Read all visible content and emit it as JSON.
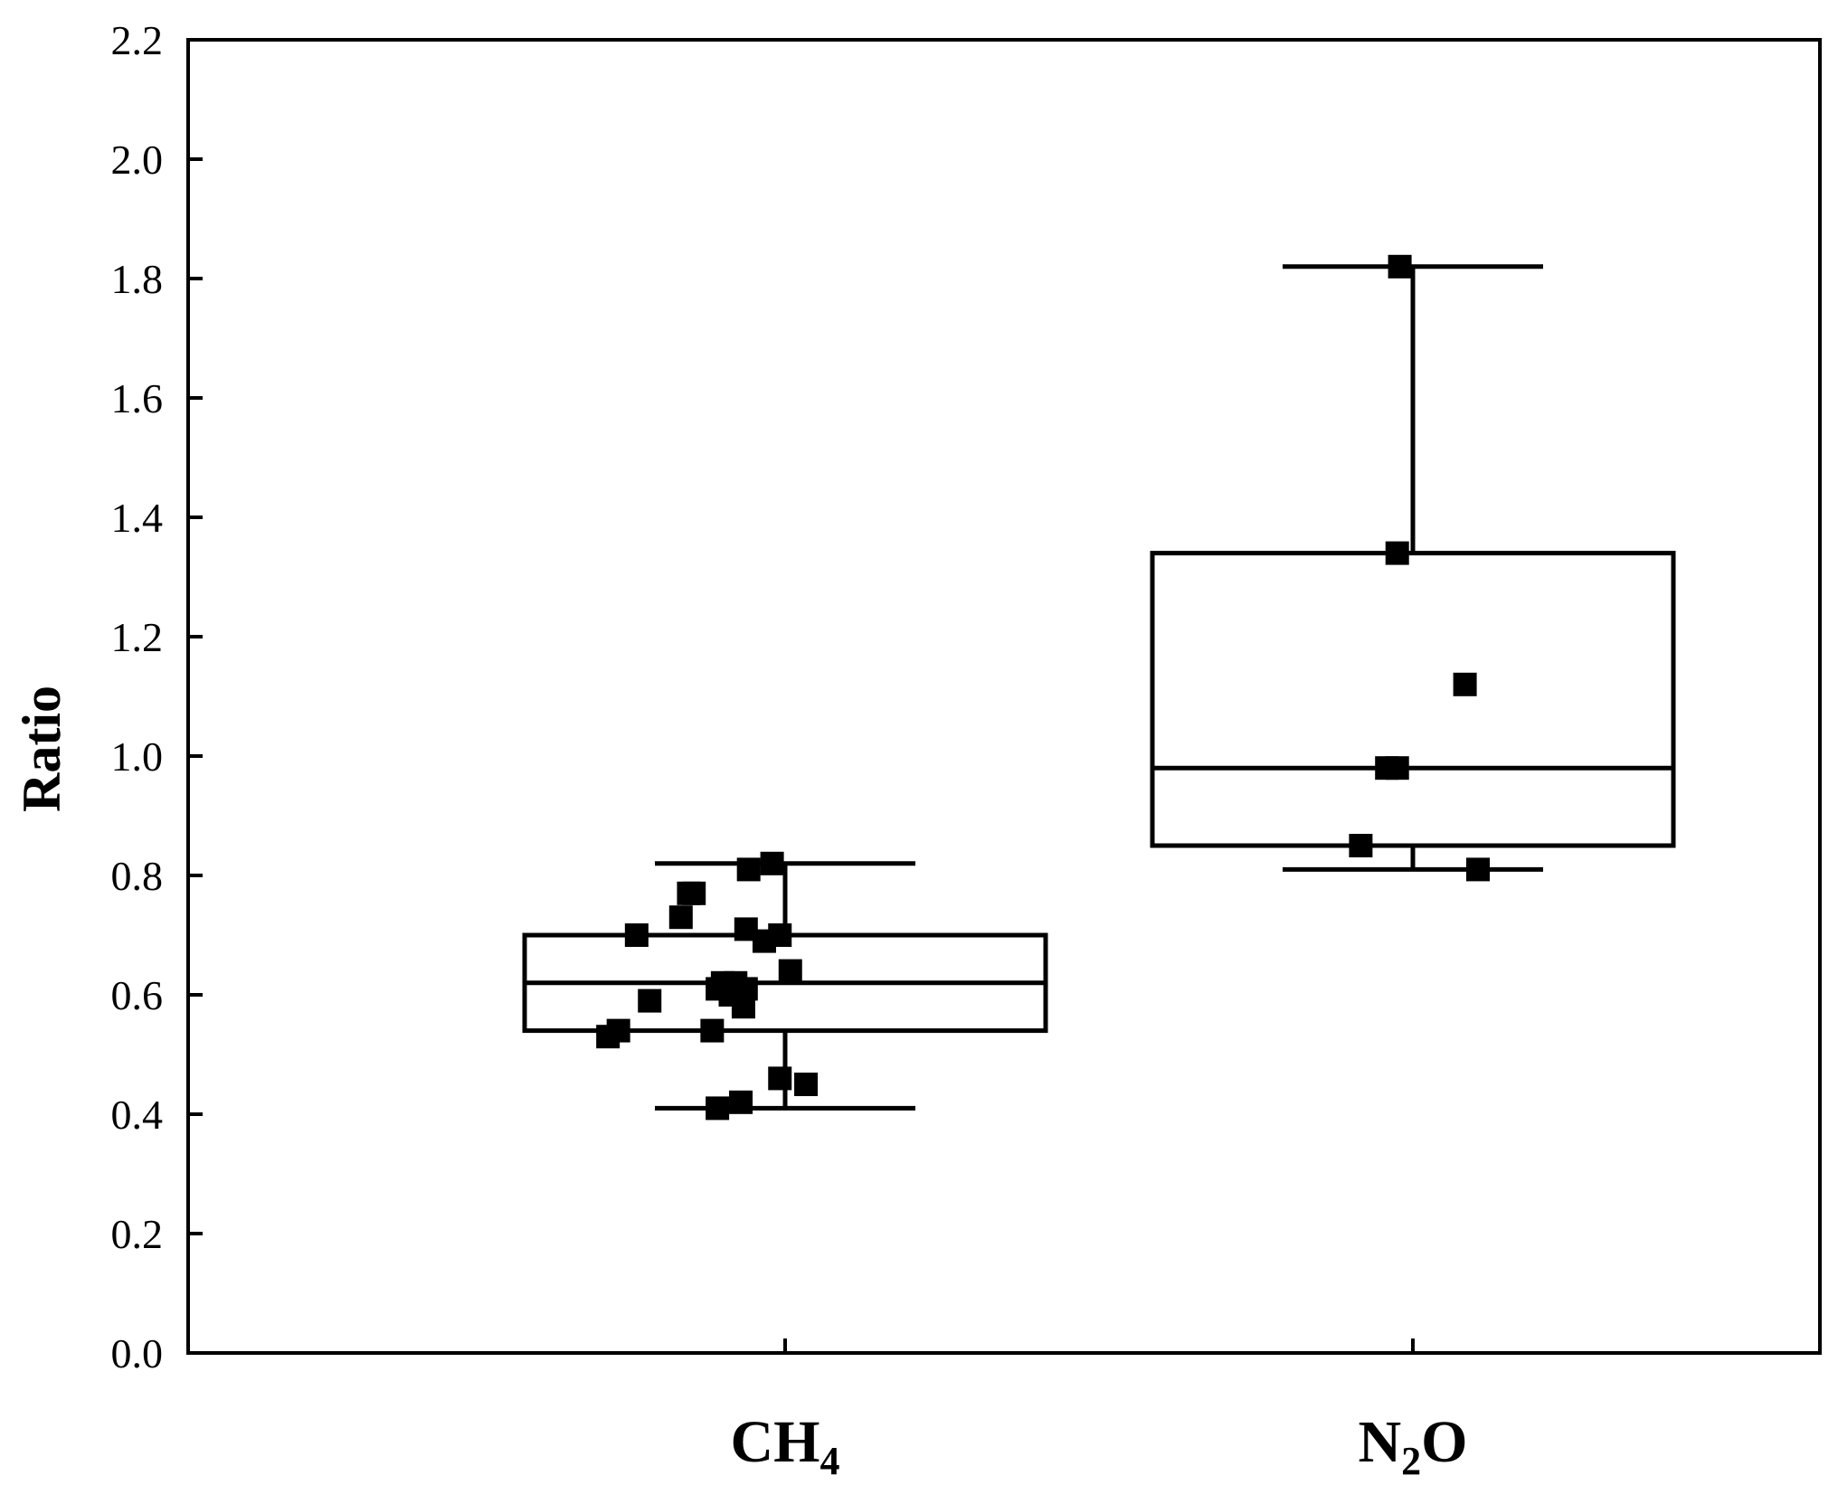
{
  "chart_data": {
    "type": "box",
    "title": "",
    "xlabel": "",
    "ylabel": "Ratio",
    "ylim": [
      0,
      2.2
    ],
    "yticks": [
      "0.0",
      "0.2",
      "0.4",
      "0.6",
      "0.8",
      "1.0",
      "1.2",
      "1.4",
      "1.6",
      "1.8",
      "2.0",
      "2.2"
    ],
    "grid": false,
    "legend": "none",
    "colors": {
      "line": "#000000",
      "point": "#000000",
      "fill": "#ffffff"
    },
    "categories": [
      {
        "base": "CH",
        "sub": "4",
        "box": {
          "whisker_low": 0.41,
          "q1": 0.54,
          "median": 0.62,
          "q3": 0.7,
          "whisker_high": 0.82
        },
        "points": [
          {
            "jitter": -0.05,
            "y": 0.82
          },
          {
            "jitter": -0.14,
            "y": 0.81
          },
          {
            "jitter": -0.35,
            "y": 0.77
          },
          {
            "jitter": -0.37,
            "y": 0.77
          },
          {
            "jitter": -0.4,
            "y": 0.73
          },
          {
            "jitter": -0.57,
            "y": 0.7
          },
          {
            "jitter": -0.15,
            "y": 0.71
          },
          {
            "jitter": -0.08,
            "y": 0.69
          },
          {
            "jitter": -0.02,
            "y": 0.7
          },
          {
            "jitter": 0.02,
            "y": 0.64
          },
          {
            "jitter": -0.24,
            "y": 0.62
          },
          {
            "jitter": -0.19,
            "y": 0.62
          },
          {
            "jitter": -0.26,
            "y": 0.61
          },
          {
            "jitter": -0.15,
            "y": 0.61
          },
          {
            "jitter": -0.21,
            "y": 0.6
          },
          {
            "jitter": -0.52,
            "y": 0.59
          },
          {
            "jitter": -0.16,
            "y": 0.58
          },
          {
            "jitter": -0.64,
            "y": 0.54
          },
          {
            "jitter": -0.68,
            "y": 0.53
          },
          {
            "jitter": -0.28,
            "y": 0.54
          },
          {
            "jitter": -0.02,
            "y": 0.46
          },
          {
            "jitter": 0.08,
            "y": 0.45
          },
          {
            "jitter": -0.17,
            "y": 0.42
          },
          {
            "jitter": -0.26,
            "y": 0.41
          }
        ]
      },
      {
        "base": "N",
        "sub": "2",
        "tail": "O",
        "box": {
          "whisker_low": 0.81,
          "q1": 0.85,
          "median": 0.98,
          "q3": 1.34,
          "whisker_high": 1.82
        },
        "points": [
          {
            "jitter": -0.05,
            "y": 1.82
          },
          {
            "jitter": -0.06,
            "y": 1.34
          },
          {
            "jitter": 0.2,
            "y": 1.12
          },
          {
            "jitter": -0.1,
            "y": 0.98
          },
          {
            "jitter": -0.06,
            "y": 0.98
          },
          {
            "jitter": -0.2,
            "y": 0.85
          },
          {
            "jitter": 0.25,
            "y": 0.81
          }
        ]
      }
    ]
  }
}
